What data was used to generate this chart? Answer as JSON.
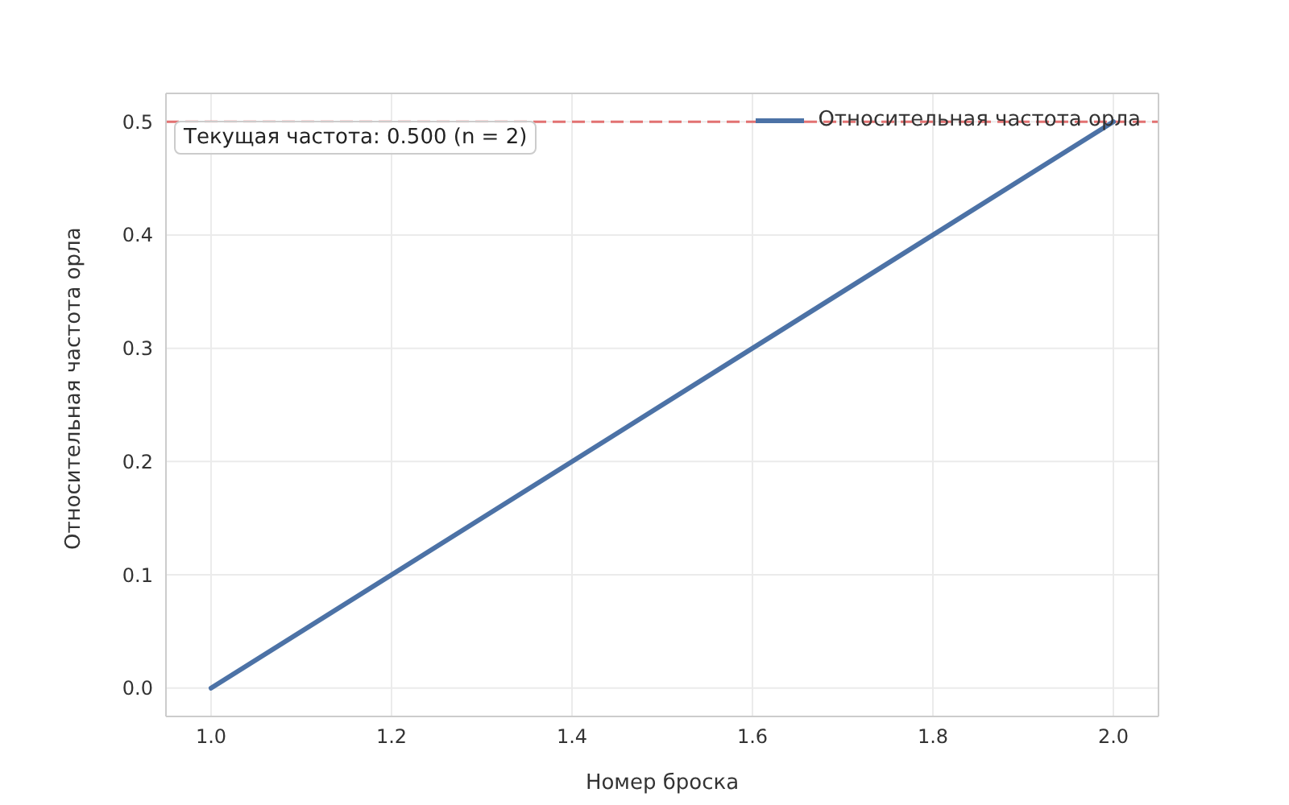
{
  "chart_data": {
    "type": "line",
    "xlabel": "Номер броска",
    "ylabel": "Относительная частота орла",
    "x": [
      1,
      2
    ],
    "series": [
      {
        "name": "Относительная частота орла",
        "color": "#4c72a6",
        "values": [
          0,
          0.5
        ]
      }
    ],
    "xlim": [
      0.95,
      2.05
    ],
    "xticks": [
      {
        "value": 1,
        "label": "1.0"
      },
      1.2,
      1.4,
      1.6,
      1.8,
      {
        "value": 2,
        "label": "2.0"
      }
    ],
    "ylim": [
      -0.025,
      0.525
    ],
    "yticks": [
      {
        "value": 0,
        "label": "0.0"
      },
      0.1,
      0.2,
      0.3,
      0.4,
      0.5
    ],
    "ref_lines": [
      {
        "axis": "y",
        "value": 0.5,
        "color": "#e27272",
        "line_style": "dashed"
      }
    ],
    "annotations": [
      "Текущая частота: 0.500  (n = 2)"
    ],
    "grid": true,
    "legend": "top right",
    "marker": "none",
    "line_style": "solid"
  }
}
